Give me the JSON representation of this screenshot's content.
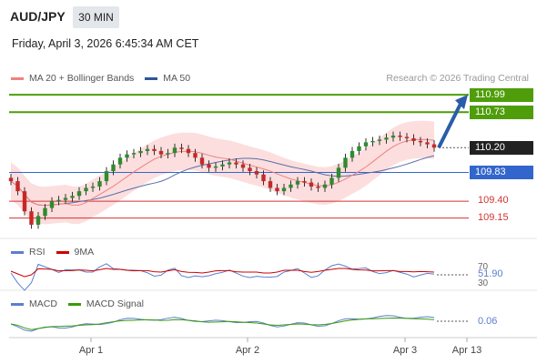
{
  "header": {
    "pair": "AUD/JPY",
    "timeframe": "30 MIN",
    "datetime": "Friday, April 3, 2026 6:45:34 AM CET",
    "research": "Research © 2026 Trading Central"
  },
  "legend": {
    "main": [
      {
        "label": "MA 20 + Bollinger Bands",
        "color": "#f08080"
      },
      {
        "label": "MA 50",
        "color": "#2f5597"
      }
    ],
    "rsi": [
      {
        "label": "RSI",
        "color": "#5b7fcf"
      },
      {
        "label": "9MA",
        "color": "#cc0000"
      }
    ],
    "macd": [
      {
        "label": "MACD",
        "color": "#5b7fcf"
      },
      {
        "label": "MACD Signal",
        "color": "#3a9a0a"
      }
    ]
  },
  "levels": [
    {
      "value": "110.99",
      "kind": "target",
      "color": "#4f9d0a"
    },
    {
      "value": "110.73",
      "kind": "target",
      "color": "#4f9d0a"
    },
    {
      "value": "110.20",
      "kind": "last",
      "color": "#222222"
    },
    {
      "value": "109.83",
      "kind": "pivot",
      "color": "#3366cc"
    },
    {
      "value": "109.40",
      "kind": "support",
      "color": "#d33333"
    },
    {
      "value": "109.15",
      "kind": "support",
      "color": "#d33333"
    }
  ],
  "indicators": {
    "rsi_ticks": [
      "70",
      "30"
    ],
    "rsi_value": "51.90",
    "macd_value": "0.06"
  },
  "chart_data": {
    "type": "candlestick",
    "x_ticks": [
      "Apr 1",
      "Apr 2",
      "Apr 3",
      "Apr 13"
    ],
    "y_range": [
      108.9,
      111.1
    ],
    "close_path": [
      109.7,
      109.55,
      109.25,
      109.05,
      109.18,
      109.3,
      109.4,
      109.42,
      109.45,
      109.48,
      109.55,
      109.6,
      109.62,
      109.7,
      109.85,
      109.95,
      110.05,
      110.1,
      110.12,
      110.15,
      110.18,
      110.15,
      110.1,
      110.12,
      110.2,
      110.18,
      110.12,
      110.05,
      109.95,
      109.9,
      109.92,
      109.95,
      109.98,
      109.95,
      109.9,
      109.85,
      109.8,
      109.7,
      109.6,
      109.55,
      109.6,
      109.65,
      109.7,
      109.68,
      109.62,
      109.6,
      109.65,
      109.75,
      109.9,
      110.05,
      110.15,
      110.22,
      110.28,
      110.3,
      110.32,
      110.35,
      110.38,
      110.36,
      110.34,
      110.3,
      110.28,
      110.25,
      110.2
    ],
    "forecast_arrow": {
      "from": 110.2,
      "to": 110.99
    }
  }
}
